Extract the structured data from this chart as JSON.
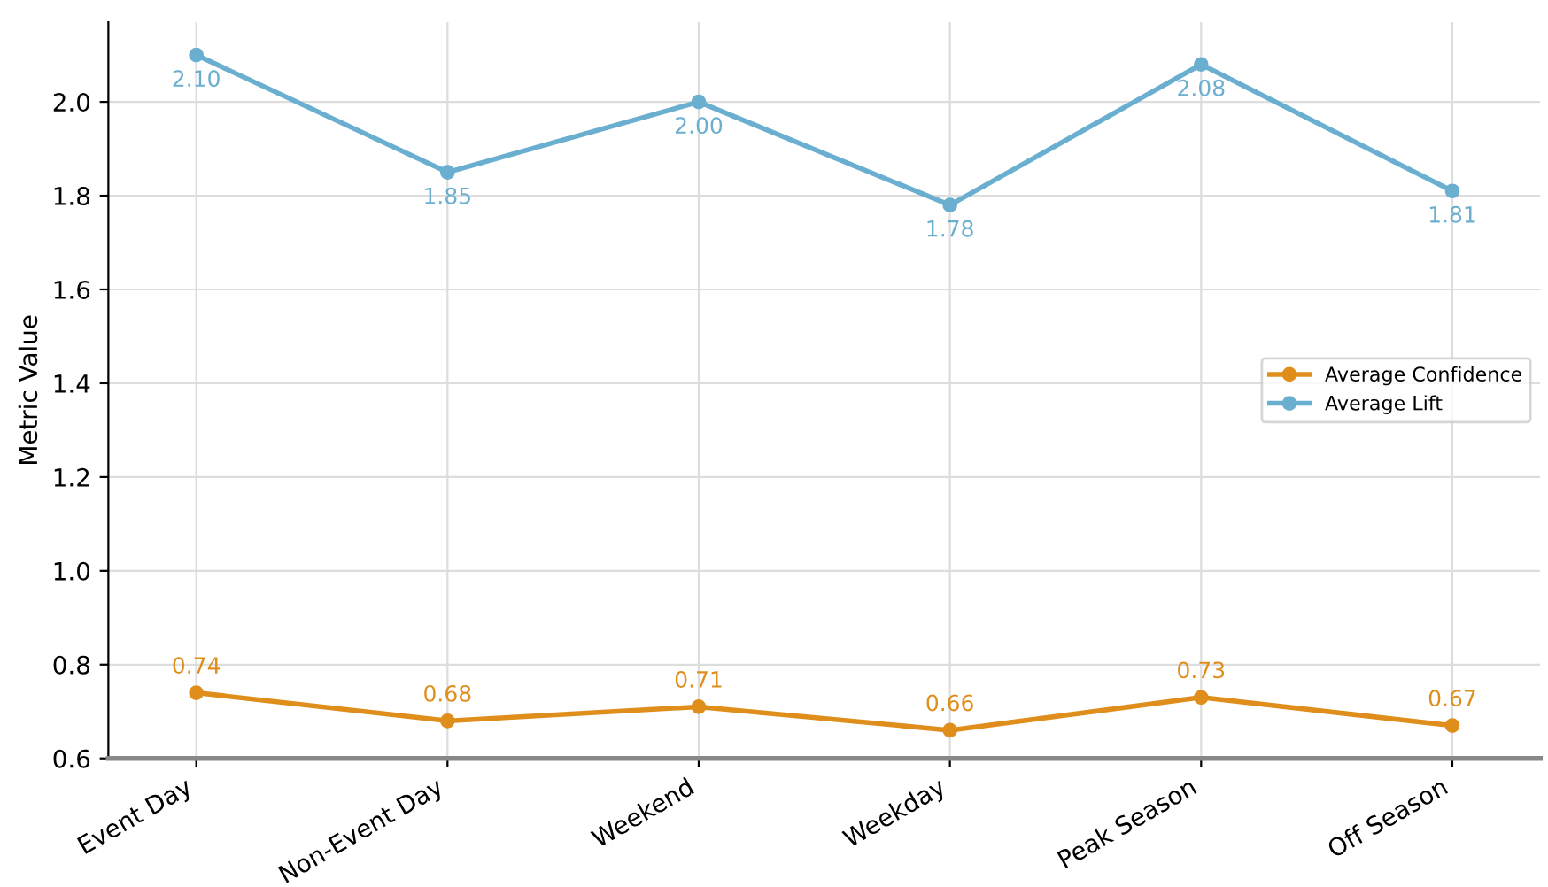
{
  "chart_data": {
    "type": "line",
    "ylabel": "Metric Value",
    "categories": [
      "Event Day",
      "Non-Event Day",
      "Weekend",
      "Weekday",
      "Peak Season",
      "Off Season"
    ],
    "series": [
      {
        "name": "Average Confidence",
        "color": "#e08e1b",
        "values": [
          0.74,
          0.68,
          0.71,
          0.66,
          0.73,
          0.67
        ],
        "value_labels": [
          "0.74",
          "0.68",
          "0.71",
          "0.66",
          "0.73",
          "0.67"
        ]
      },
      {
        "name": "Average Lift",
        "color": "#6aaed0",
        "values": [
          2.1,
          1.85,
          2.0,
          1.78,
          2.08,
          1.81
        ],
        "value_labels": [
          "2.10",
          "1.85",
          "2.00",
          "1.78",
          "2.08",
          "1.81"
        ]
      }
    ],
    "ylim": [
      0.6,
      2.17
    ],
    "yticks": [
      0.6,
      0.8,
      {
        "value": 1,
        "label": "1.0"
      },
      1.2,
      1.4,
      1.6,
      1.8,
      {
        "value": 2,
        "label": "2.0"
      }
    ],
    "grid": true,
    "legend": "right",
    "marker": "circle",
    "line_style": "solid"
  }
}
